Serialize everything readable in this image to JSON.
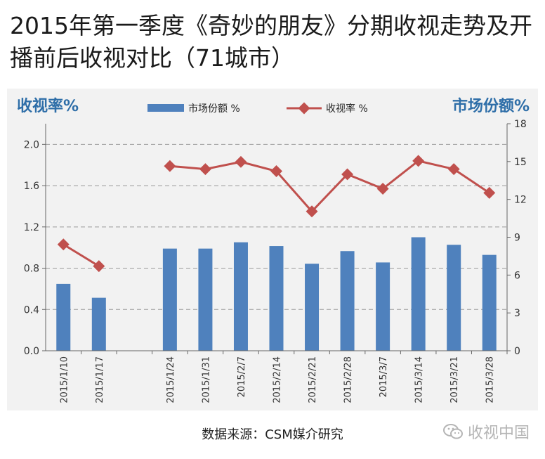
{
  "title": "2015年第一季度《奇妙的朋友》分期收视走势及开播前后收视对比（71城市）",
  "source": "数据来源：CSM媒介研究",
  "watermark": {
    "text": "收视中国",
    "icon": "wechat-icon"
  },
  "colors": {
    "bar": "#4f81bd",
    "line": "#c0504d",
    "axis_title": "#2e6ea8",
    "panel": "#f2f2f2"
  },
  "chart_data": {
    "type": "bar+line",
    "categories": [
      "2015/1/10",
      "2015/1/17",
      "",
      "2015/1/24",
      "2015/1/31",
      "2015/2/7",
      "2015/2/14",
      "2015/2/21",
      "2015/2/28",
      "2015/3/7",
      "2015/3/14",
      "2015/3/21",
      "2015/3/28"
    ],
    "series": [
      {
        "name": "市场份额 %",
        "type": "bar",
        "axis": "right",
        "values": [
          5.3,
          4.2,
          null,
          8.1,
          8.1,
          8.6,
          8.3,
          6.9,
          7.9,
          7.0,
          9.0,
          8.4,
          7.6
        ]
      },
      {
        "name": "收视率 %",
        "type": "line",
        "axis": "left",
        "values": [
          1.03,
          0.82,
          null,
          1.79,
          1.76,
          1.83,
          1.74,
          1.35,
          1.71,
          1.57,
          1.84,
          1.76,
          1.53
        ]
      }
    ],
    "left_axis": {
      "title": "收视率%",
      "ylim": [
        0,
        2.2
      ],
      "ticks": [
        "0.0",
        "0.4",
        "0.8",
        "1.2",
        "1.6",
        "2.0"
      ]
    },
    "right_axis": {
      "title": "市场份额%",
      "ylim": [
        0,
        18
      ],
      "ticks": [
        "0",
        "3",
        "6",
        "9",
        "12",
        "15",
        "18"
      ]
    },
    "grid": "horizontal-dashed",
    "legend_position": "top"
  }
}
